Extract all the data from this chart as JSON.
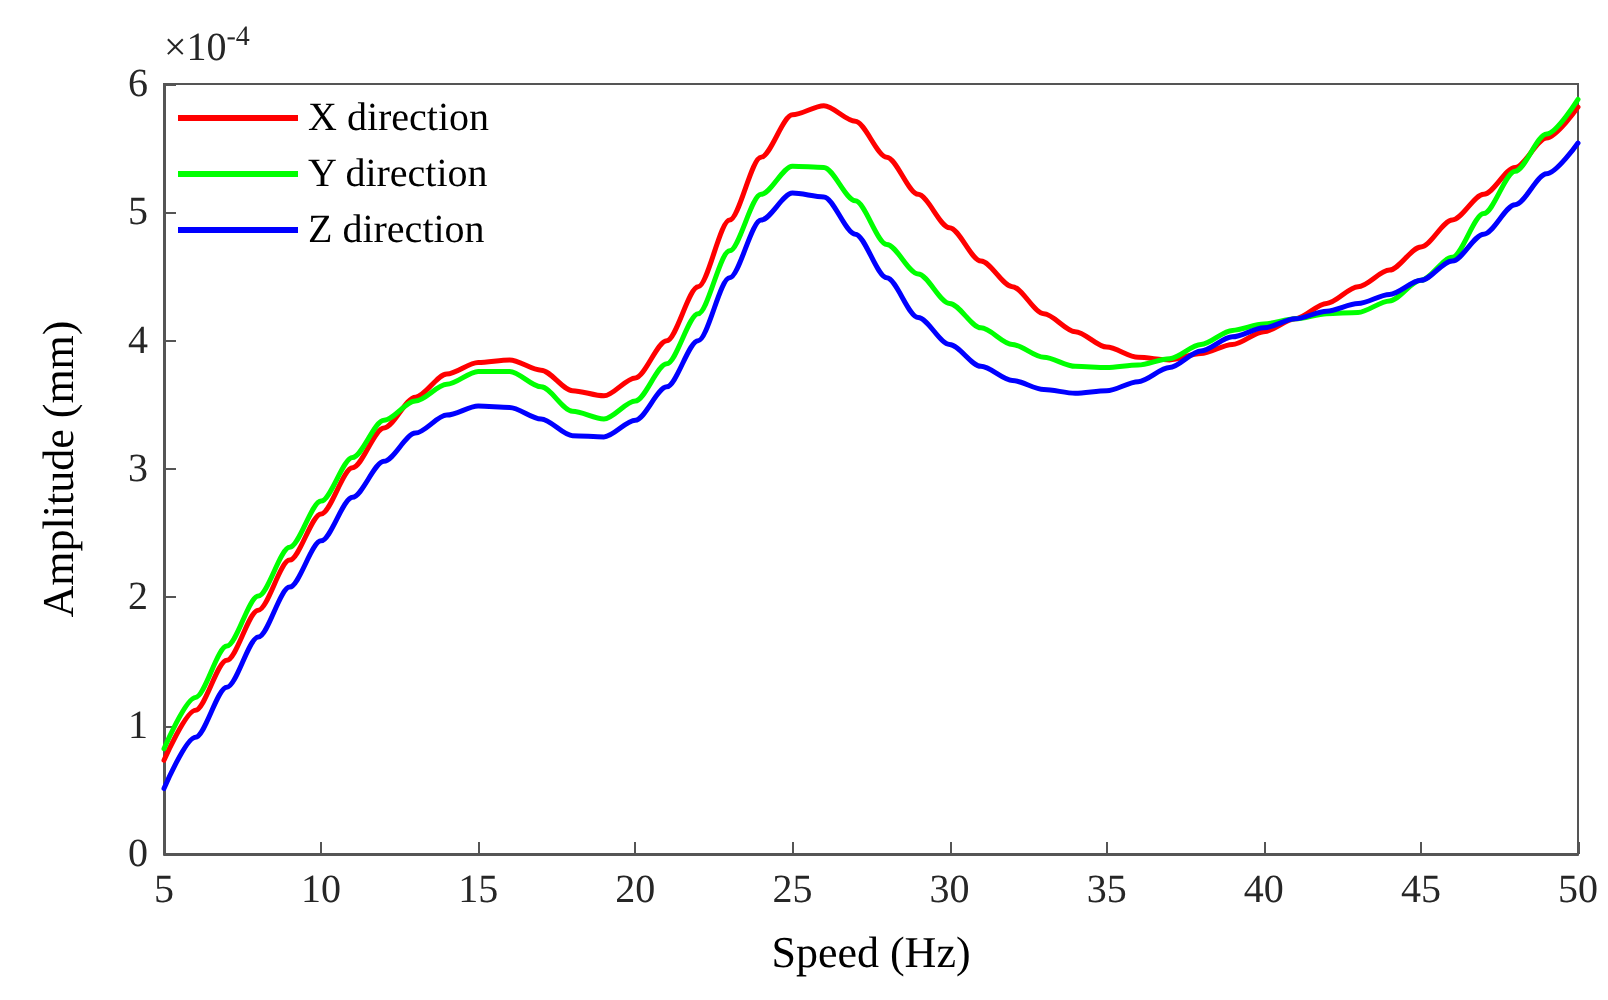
{
  "chart_data": {
    "type": "line",
    "xlabel": "Speed (Hz)",
    "ylabel": "Amplitude (mm)",
    "annotations": [
      "×10$^{-4}$"
    ],
    "x": [
      5,
      6,
      7,
      8,
      9,
      10,
      11,
      12,
      13,
      14,
      15,
      16,
      17,
      18,
      19,
      20,
      21,
      22,
      23,
      24,
      25,
      26,
      27,
      28,
      29,
      30,
      31,
      32,
      33,
      34,
      35,
      36,
      37,
      38,
      39,
      40,
      41,
      42,
      43,
      44,
      45,
      46,
      47,
      48,
      49,
      50
    ],
    "series": [
      {
        "name": "X direction",
        "color": "#ff0000",
        "values": [
          0.73,
          1.12,
          1.51,
          1.9,
          2.29,
          2.65,
          3.01,
          3.32,
          3.56,
          3.74,
          3.83,
          3.85,
          3.77,
          3.61,
          3.57,
          3.71,
          4.0,
          4.42,
          4.94,
          5.43,
          5.76,
          5.83,
          5.71,
          5.43,
          5.14,
          4.88,
          4.62,
          4.42,
          4.21,
          4.07,
          3.95,
          3.87,
          3.85,
          3.9,
          3.97,
          4.07,
          4.17,
          4.29,
          4.42,
          4.55,
          4.73,
          4.94,
          5.14,
          5.35,
          5.58,
          5.82
        ]
      },
      {
        "name": "Y direction",
        "color": "#00ff00",
        "values": [
          0.82,
          1.22,
          1.62,
          2.01,
          2.39,
          2.75,
          3.09,
          3.38,
          3.53,
          3.66,
          3.76,
          3.76,
          3.64,
          3.45,
          3.39,
          3.53,
          3.82,
          4.21,
          4.7,
          5.14,
          5.36,
          5.35,
          5.09,
          4.75,
          4.52,
          4.29,
          4.1,
          3.97,
          3.87,
          3.8,
          3.79,
          3.81,
          3.86,
          3.97,
          4.08,
          4.13,
          4.17,
          4.21,
          4.22,
          4.31,
          4.47,
          4.65,
          4.99,
          5.32,
          5.61,
          5.88
        ]
      },
      {
        "name": "Z direction",
        "color": "#0000ff",
        "values": [
          0.51,
          0.91,
          1.3,
          1.69,
          2.08,
          2.44,
          2.78,
          3.06,
          3.28,
          3.42,
          3.49,
          3.48,
          3.39,
          3.26,
          3.25,
          3.38,
          3.64,
          4.0,
          4.49,
          4.94,
          5.15,
          5.12,
          4.83,
          4.49,
          4.18,
          3.97,
          3.8,
          3.69,
          3.62,
          3.59,
          3.61,
          3.68,
          3.79,
          3.92,
          4.03,
          4.1,
          4.17,
          4.23,
          4.29,
          4.36,
          4.47,
          4.62,
          4.83,
          5.06,
          5.3,
          5.54
        ]
      }
    ],
    "xlim": [
      5,
      50
    ],
    "xticks": [
      5,
      10,
      15,
      20,
      25,
      30,
      35,
      40,
      45,
      50
    ],
    "ylim": [
      0,
      6
    ],
    "yticks": [
      0,
      1,
      2,
      3,
      4,
      5,
      6
    ],
    "grid": false,
    "legend": "top left",
    "marker": "none",
    "line_style": "solid"
  }
}
